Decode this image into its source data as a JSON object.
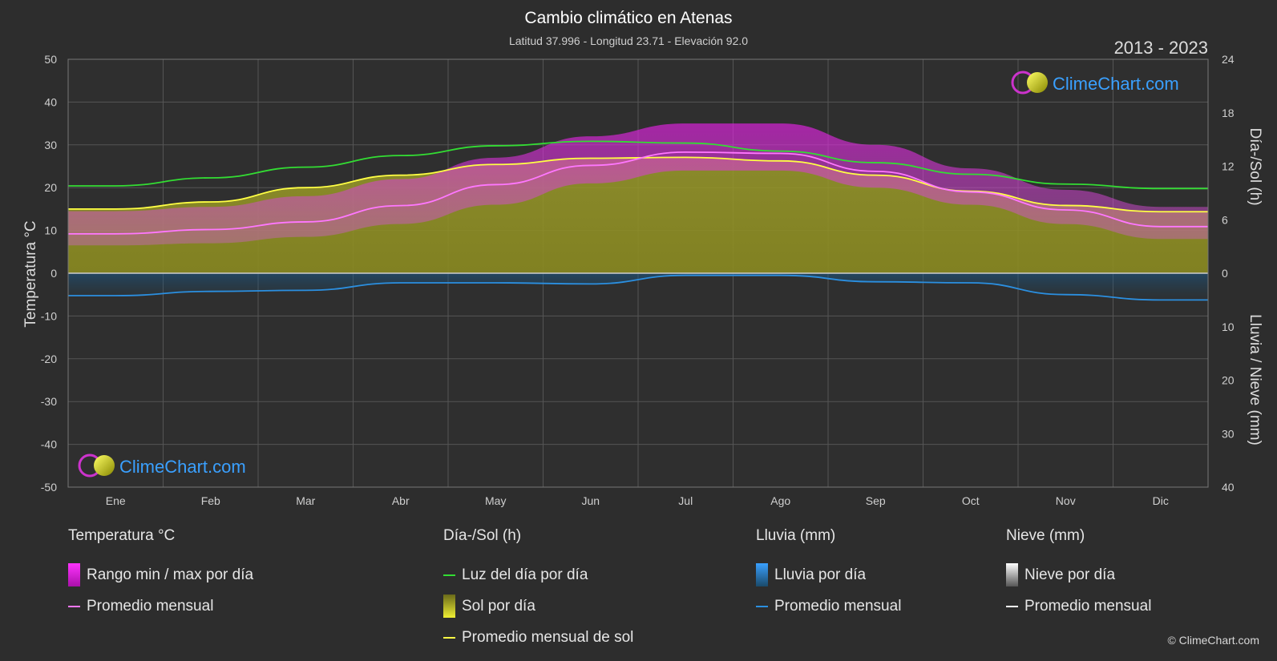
{
  "header": {
    "title": "Cambio climático en Atenas",
    "subtitle": "Latitud 37.996 - Longitud 23.71 - Elevación 92.0",
    "years": "2013 - 2023"
  },
  "brand": {
    "name": "ClimeChart.com",
    "copyright": "© ClimeChart.com"
  },
  "colors": {
    "background": "#2d2d2d",
    "temp_range": "#e020e0",
    "temp_avg": "#ff77ff",
    "daylight": "#33dd33",
    "sunshine": "#c8c830",
    "sun_avg": "#ffff44",
    "rain": "#2b8fe0",
    "rain_avg": "#2b8fe0",
    "snow_avg": "#ffffff"
  },
  "chart_data": {
    "type": "area",
    "x": [
      "Ene",
      "Feb",
      "Mar",
      "Abr",
      "May",
      "Jun",
      "Jul",
      "Ago",
      "Sep",
      "Oct",
      "Nov",
      "Dic"
    ],
    "left_axis": {
      "label": "Temperatura °C",
      "range": [
        -50,
        50
      ],
      "ticks": [
        50,
        40,
        30,
        20,
        10,
        0,
        -10,
        -20,
        -30,
        -40,
        -50
      ]
    },
    "right_axis_top": {
      "label": "Día-/Sol (h)",
      "range": [
        0,
        24
      ],
      "ticks": [
        24,
        18,
        12,
        6,
        0
      ]
    },
    "right_axis_bottom": {
      "label": "Lluvia / Nieve (mm)",
      "range": [
        0,
        40
      ],
      "ticks": [
        10,
        20,
        30,
        40
      ]
    },
    "grid": true,
    "series": [
      {
        "name": "Promedio mensual",
        "group": "Temperatura °C",
        "unit": "°C",
        "values": [
          9.2,
          10.2,
          12.0,
          15.8,
          20.7,
          25.2,
          28.3,
          28.0,
          23.8,
          19.0,
          14.8,
          10.9
        ]
      },
      {
        "name": "Rango max",
        "group": "Temperatura °C",
        "unit": "°C",
        "values": [
          14.5,
          15.5,
          18.0,
          22.0,
          27.0,
          32.0,
          35.0,
          35.0,
          30.0,
          24.5,
          19.5,
          15.5
        ]
      },
      {
        "name": "Rango min",
        "group": "Temperatura °C",
        "unit": "°C",
        "values": [
          6.5,
          7.0,
          8.5,
          11.5,
          16.0,
          21.0,
          24.0,
          24.0,
          20.0,
          16.0,
          11.5,
          8.0
        ]
      },
      {
        "name": "Luz del día por día",
        "group": "Día-/Sol (h)",
        "unit": "h",
        "values": [
          9.8,
          10.7,
          11.9,
          13.2,
          14.3,
          14.8,
          14.6,
          13.7,
          12.4,
          11.1,
          10.0,
          9.5
        ]
      },
      {
        "name": "Promedio mensual de sol",
        "group": "Día-/Sol (h)",
        "unit": "h",
        "values": [
          7.2,
          8.0,
          9.6,
          11.0,
          12.2,
          12.9,
          13.0,
          12.6,
          11.0,
          9.2,
          7.6,
          6.9
        ]
      },
      {
        "name": "Promedio mensual",
        "group": "Lluvia (mm)",
        "unit": "mm",
        "values": [
          4.2,
          3.4,
          3.2,
          1.8,
          1.8,
          2.0,
          0.4,
          0.4,
          1.6,
          1.8,
          4.0,
          5.0
        ]
      },
      {
        "name": "Promedio mensual",
        "group": "Nieve (mm)",
        "unit": "mm",
        "values": [
          0,
          0,
          0,
          0,
          0,
          0,
          0,
          0,
          0,
          0,
          0,
          0
        ]
      }
    ]
  },
  "legend": [
    {
      "title": "Temperatura °C",
      "items": [
        {
          "label": "Rango min / max por día",
          "kind": "box",
          "color": "#e020e0"
        },
        {
          "label": "Promedio mensual",
          "kind": "line",
          "color": "#ff77ff"
        }
      ]
    },
    {
      "title": "Día-/Sol (h)",
      "items": [
        {
          "label": "Luz del día por día",
          "kind": "line",
          "color": "#33dd33"
        },
        {
          "label": "Sol por día",
          "kind": "box",
          "color": "#c8c830"
        },
        {
          "label": "Promedio mensual de sol",
          "kind": "line",
          "color": "#ffff44"
        }
      ]
    },
    {
      "title": "Lluvia (mm)",
      "items": [
        {
          "label": "Lluvia por día",
          "kind": "box",
          "color": "#2b8fe0"
        },
        {
          "label": "Promedio mensual",
          "kind": "line",
          "color": "#2b8fe0"
        }
      ]
    },
    {
      "title": "Nieve (mm)",
      "items": [
        {
          "label": "Nieve por día",
          "kind": "box",
          "color": "#dddddd"
        },
        {
          "label": "Promedio mensual",
          "kind": "line",
          "color": "#ffffff"
        }
      ]
    }
  ]
}
